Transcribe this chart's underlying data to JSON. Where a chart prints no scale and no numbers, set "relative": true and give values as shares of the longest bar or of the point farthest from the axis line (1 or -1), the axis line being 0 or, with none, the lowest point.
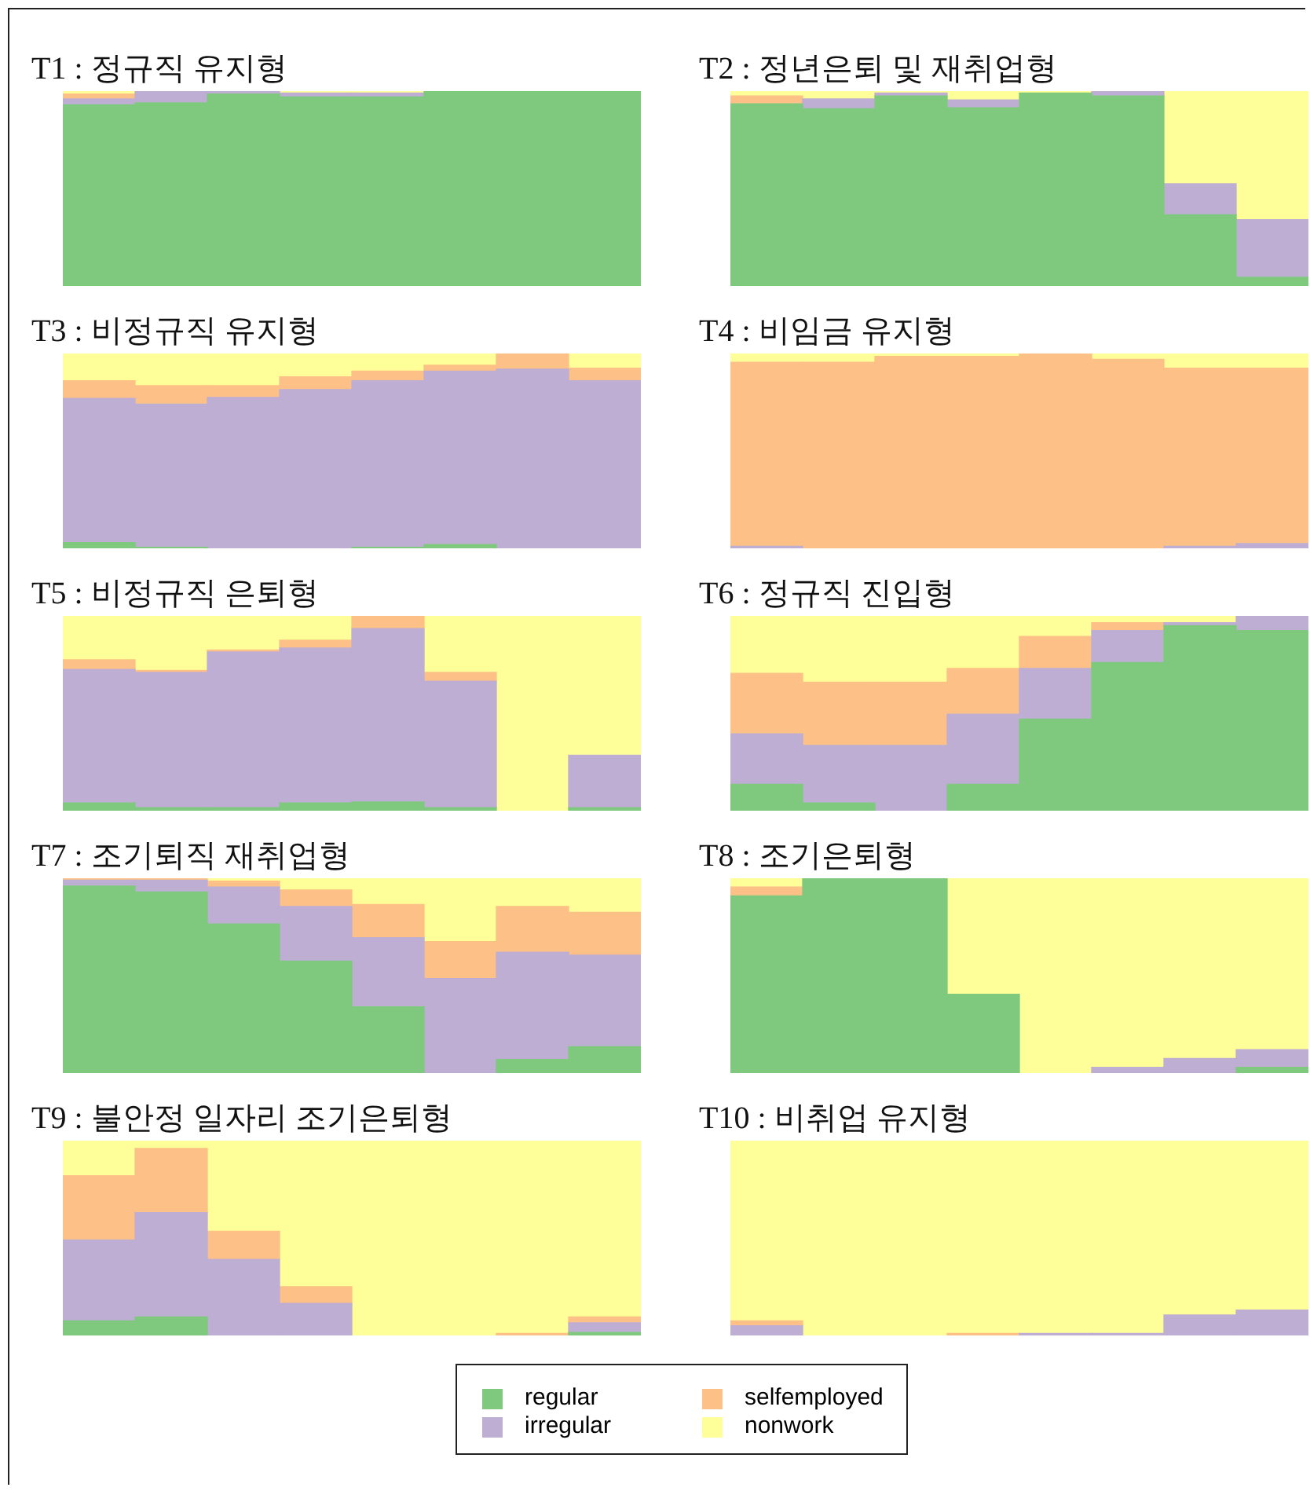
{
  "chart_data": [
    {
      "type": "bar",
      "title": "T1 : 정규직 유지형",
      "stacked": true,
      "relative": true,
      "legend": "bottom",
      "categories": [
        null,
        null,
        null,
        null,
        null,
        null,
        null,
        null
      ],
      "series": [
        {
          "name": "regular",
          "color": "#7fc97f",
          "values": [
            0.93,
            0.94,
            0.985,
            0.97,
            0.97,
            1,
            1,
            1
          ]
        },
        {
          "name": "irregular",
          "color": "#beaed4",
          "values": [
            0.03,
            0.06,
            0.015,
            0.02,
            0.02,
            0,
            0,
            0
          ]
        },
        {
          "name": "selfemployed",
          "color": "#fdc086",
          "values": [
            0.025,
            0,
            0,
            0,
            0,
            0,
            0,
            0
          ]
        },
        {
          "name": "nonwork",
          "color": "#ffff99",
          "values": [
            0.015,
            0,
            0,
            0.01,
            0.01,
            0,
            0,
            0
          ]
        }
      ]
    },
    {
      "type": "bar",
      "title": "T2 : 정년은퇴 및 재취업형",
      "stacked": true,
      "relative": true,
      "legend": "bottom",
      "categories": [
        null,
        null,
        null,
        null,
        null,
        null,
        null,
        null
      ],
      "series": [
        {
          "name": "regular",
          "color": "#7fc97f",
          "values": [
            0.935,
            0.91,
            0.975,
            0.915,
            0.99,
            0.975,
            0.365,
            0.045
          ]
        },
        {
          "name": "irregular",
          "color": "#beaed4",
          "values": [
            0,
            0.05,
            0.015,
            0.04,
            0,
            0.025,
            0.16,
            0.295
          ]
        },
        {
          "name": "selfemployed",
          "color": "#fdc086",
          "values": [
            0.04,
            0,
            0,
            0,
            0,
            0,
            0,
            0
          ]
        },
        {
          "name": "nonwork",
          "color": "#ffff99",
          "values": [
            0.025,
            0.04,
            0.01,
            0.045,
            0.01,
            0,
            0.475,
            0.66
          ]
        }
      ]
    },
    {
      "type": "bar",
      "title": "T3 : 비정규직 유지형",
      "stacked": true,
      "relative": true,
      "legend": "bottom",
      "categories": [
        null,
        null,
        null,
        null,
        null,
        null,
        null,
        null
      ],
      "series": [
        {
          "name": "regular",
          "color": "#7fc97f",
          "values": [
            0.03,
            0.005,
            0,
            0,
            0.005,
            0.02,
            0,
            0
          ]
        },
        {
          "name": "irregular",
          "color": "#beaed4",
          "values": [
            0.74,
            0.735,
            0.775,
            0.815,
            0.855,
            0.89,
            0.92,
            0.86
          ]
        },
        {
          "name": "selfemployed",
          "color": "#fdc086",
          "values": [
            0.09,
            0.095,
            0.06,
            0.065,
            0.05,
            0.03,
            0.08,
            0.065
          ]
        },
        {
          "name": "nonwork",
          "color": "#ffff99",
          "values": [
            0.14,
            0.165,
            0.165,
            0.12,
            0.09,
            0.06,
            0,
            0.075
          ]
        }
      ]
    },
    {
      "type": "bar",
      "title": "T4 : 비임금 유지형",
      "stacked": true,
      "relative": true,
      "legend": "bottom",
      "categories": [
        null,
        null,
        null,
        null,
        null,
        null,
        null,
        null
      ],
      "series": [
        {
          "name": "regular",
          "color": "#7fc97f",
          "values": [
            0,
            0,
            0,
            0,
            0,
            0,
            0,
            0
          ]
        },
        {
          "name": "irregular",
          "color": "#beaed4",
          "values": [
            0.01,
            0,
            0,
            0,
            0,
            0,
            0.01,
            0.025
          ]
        },
        {
          "name": "selfemployed",
          "color": "#fdc086",
          "values": [
            0.945,
            0.955,
            0.985,
            0.985,
            1,
            0.97,
            0.915,
            0.9
          ]
        },
        {
          "name": "nonwork",
          "color": "#ffff99",
          "values": [
            0.045,
            0.045,
            0.015,
            0.015,
            0,
            0.03,
            0.075,
            0.075
          ]
        }
      ]
    },
    {
      "type": "bar",
      "title": "T5 : 비정규직 은퇴형",
      "stacked": true,
      "relative": true,
      "legend": "bottom",
      "categories": [
        null,
        null,
        null,
        null,
        null,
        null,
        null,
        null
      ],
      "series": [
        {
          "name": "regular",
          "color": "#7fc97f",
          "values": [
            0.04,
            0.015,
            0.015,
            0.04,
            0.045,
            0.015,
            0,
            0.015
          ]
        },
        {
          "name": "irregular",
          "color": "#beaed4",
          "values": [
            0.685,
            0.695,
            0.8,
            0.795,
            0.89,
            0.65,
            0,
            0.27
          ]
        },
        {
          "name": "selfemployed",
          "color": "#fdc086",
          "values": [
            0.05,
            0.01,
            0.01,
            0.04,
            0.065,
            0.045,
            0,
            0
          ]
        },
        {
          "name": "nonwork",
          "color": "#ffff99",
          "values": [
            0.225,
            0.28,
            0.175,
            0.125,
            0,
            0.29,
            1,
            0.715
          ]
        }
      ]
    },
    {
      "type": "bar",
      "title": "T6 : 정규직 진입형",
      "stacked": true,
      "relative": true,
      "legend": "bottom",
      "categories": [
        null,
        null,
        null,
        null,
        null,
        null,
        null,
        null
      ],
      "series": [
        {
          "name": "regular",
          "color": "#7fc97f",
          "values": [
            0.135,
            0.04,
            0,
            0.135,
            0.47,
            0.76,
            0.95,
            0.925
          ]
        },
        {
          "name": "irregular",
          "color": "#beaed4",
          "values": [
            0.26,
            0.295,
            0.335,
            0.36,
            0.26,
            0.165,
            0.015,
            0.075
          ]
        },
        {
          "name": "selfemployed",
          "color": "#fdc086",
          "values": [
            0.31,
            0.325,
            0.325,
            0.235,
            0.165,
            0.04,
            0,
            0
          ]
        },
        {
          "name": "nonwork",
          "color": "#ffff99",
          "values": [
            0.295,
            0.34,
            0.34,
            0.27,
            0.105,
            0.035,
            0.035,
            0
          ]
        }
      ]
    },
    {
      "type": "bar",
      "title": "T7 : 조기퇴직 재취업형",
      "stacked": true,
      "relative": true,
      "legend": "bottom",
      "categories": [
        null,
        null,
        null,
        null,
        null,
        null,
        null,
        null
      ],
      "series": [
        {
          "name": "regular",
          "color": "#7fc97f",
          "values": [
            0.96,
            0.93,
            0.765,
            0.575,
            0.34,
            0,
            0.07,
            0.135
          ]
        },
        {
          "name": "irregular",
          "color": "#beaed4",
          "values": [
            0.03,
            0.06,
            0.19,
            0.28,
            0.355,
            0.485,
            0.55,
            0.47
          ]
        },
        {
          "name": "selfemployed",
          "color": "#fdc086",
          "values": [
            0.01,
            0.01,
            0.03,
            0.085,
            0.17,
            0.19,
            0.235,
            0.22
          ]
        },
        {
          "name": "nonwork",
          "color": "#ffff99",
          "values": [
            0,
            0,
            0.015,
            0.06,
            0.135,
            0.325,
            0.145,
            0.175
          ]
        }
      ]
    },
    {
      "type": "bar",
      "title": "T8 : 조기은퇴형",
      "stacked": true,
      "relative": true,
      "legend": "bottom",
      "categories": [
        null,
        null,
        null,
        null,
        null,
        null,
        null,
        null
      ],
      "series": [
        {
          "name": "regular",
          "color": "#7fc97f",
          "values": [
            0.91,
            1,
            1,
            0.405,
            0,
            0,
            0,
            0.03
          ]
        },
        {
          "name": "irregular",
          "color": "#beaed4",
          "values": [
            0,
            0,
            0,
            0,
            0,
            0.03,
            0.075,
            0.09
          ]
        },
        {
          "name": "selfemployed",
          "color": "#fdc086",
          "values": [
            0.045,
            0,
            0,
            0,
            0,
            0,
            0,
            0
          ]
        },
        {
          "name": "nonwork",
          "color": "#ffff99",
          "values": [
            0.045,
            0,
            0,
            0.595,
            1,
            0.97,
            0.925,
            0.88
          ]
        }
      ]
    },
    {
      "type": "bar",
      "title": "T9 : 불안정 일자리 조기은퇴형",
      "stacked": true,
      "relative": true,
      "legend": "bottom",
      "categories": [
        null,
        null,
        null,
        null,
        null,
        null,
        null,
        null
      ],
      "series": [
        {
          "name": "regular",
          "color": "#7fc97f",
          "values": [
            0.075,
            0.095,
            0,
            0,
            0,
            0,
            0,
            0.015
          ]
        },
        {
          "name": "irregular",
          "color": "#beaed4",
          "values": [
            0.415,
            0.535,
            0.39,
            0.165,
            0,
            0,
            0,
            0.05
          ]
        },
        {
          "name": "selfemployed",
          "color": "#fdc086",
          "values": [
            0.33,
            0.33,
            0.145,
            0.085,
            0,
            0,
            0.01,
            0.03
          ]
        },
        {
          "name": "nonwork",
          "color": "#ffff99",
          "values": [
            0.18,
            0.04,
            0.465,
            0.75,
            1,
            1,
            0.99,
            0.905
          ]
        }
      ]
    },
    {
      "type": "bar",
      "title": "T10 : 비취업 유지형",
      "stacked": true,
      "relative": true,
      "legend": "bottom",
      "categories": [
        null,
        null,
        null,
        null,
        null,
        null,
        null,
        null
      ],
      "series": [
        {
          "name": "regular",
          "color": "#7fc97f",
          "values": [
            0,
            0,
            0,
            0,
            0,
            0,
            0,
            0
          ]
        },
        {
          "name": "irregular",
          "color": "#beaed4",
          "values": [
            0.05,
            0,
            0,
            0,
            0.01,
            0.01,
            0.105,
            0.13
          ]
        },
        {
          "name": "selfemployed",
          "color": "#fdc086",
          "values": [
            0.025,
            0,
            0,
            0.01,
            0,
            0,
            0,
            0
          ]
        },
        {
          "name": "nonwork",
          "color": "#ffff99",
          "values": [
            0.925,
            1,
            1,
            0.99,
            0.99,
            0.99,
            0.895,
            0.87
          ]
        }
      ]
    }
  ]
}
